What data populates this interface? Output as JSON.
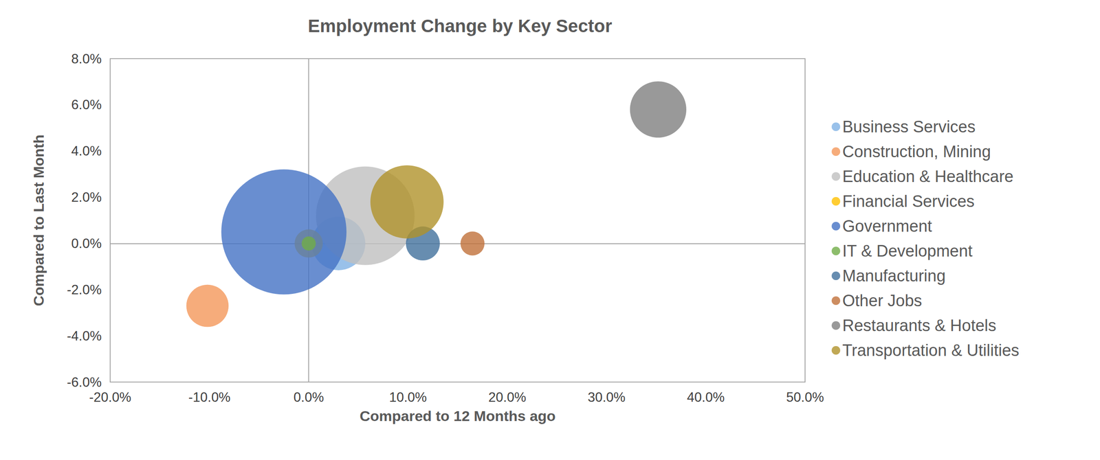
{
  "chart_data": {
    "type": "bubble",
    "title": "Employment Change by Key Sector",
    "x_label": "Compared to 12 Months ago",
    "y_label": "Compared to Last Month",
    "xlim": [
      -20,
      50
    ],
    "xticks": [
      {
        "value": -20,
        "label": "-20.0%"
      },
      {
        "value": -10,
        "label": "-10.0%"
      },
      {
        "value": 0,
        "label": "0.0%"
      },
      {
        "value": 10,
        "label": "10.0%"
      },
      {
        "value": 20,
        "label": "20.0%"
      },
      {
        "value": 30,
        "label": "30.0%"
      },
      {
        "value": 40,
        "label": "40.0%"
      },
      {
        "value": 50,
        "label": "50.0%"
      }
    ],
    "ylim": [
      -6,
      8
    ],
    "yticks": [
      {
        "value": -6,
        "label": "-6.0%"
      },
      {
        "value": -4,
        "label": "-4.0%"
      },
      {
        "value": -2,
        "label": "-2.0%"
      },
      {
        "value": 0,
        "label": "0.0%"
      },
      {
        "value": 2,
        "label": "2.0%"
      },
      {
        "value": 4,
        "label": "4.0%"
      },
      {
        "value": 6,
        "label": "6.0%"
      },
      {
        "value": 8,
        "label": "8.0%"
      }
    ],
    "grid": false,
    "legend": "right",
    "series": [
      {
        "name": "Business Services",
        "color": "#7fb2e5",
        "x": 3.0,
        "y": 0.0,
        "size": 1450
      },
      {
        "name": "Construction, Mining",
        "color": "#f4975a",
        "x": -10.2,
        "y": -2.7,
        "size": 900
      },
      {
        "name": "Education & Healthcare",
        "color": "#bfbfbf",
        "x": 5.7,
        "y": 1.2,
        "size": 4900
      },
      {
        "name": "Financial Services",
        "color": "#ffc000",
        "x": 0.0,
        "y": 0.0,
        "size": 400
      },
      {
        "name": "Government",
        "color": "#4472c4",
        "x": -2.5,
        "y": 0.5,
        "size": 7900
      },
      {
        "name": "IT & Development",
        "color": "#70ad47",
        "x": 0.0,
        "y": 0.0,
        "size": 100
      },
      {
        "name": "Manufacturing",
        "color": "#41719c",
        "x": 11.5,
        "y": 0.0,
        "size": 580
      },
      {
        "name": "Other Jobs",
        "color": "#c0703a",
        "x": 16.5,
        "y": 0.0,
        "size": 290
      },
      {
        "name": "Restaurants & Hotels",
        "color": "#7f7f7f",
        "x": 35.2,
        "y": 5.8,
        "size": 1600
      },
      {
        "name": "Transportation & Utilities",
        "color": "#b0922a",
        "x": 9.9,
        "y": 1.8,
        "size": 2700
      }
    ]
  }
}
